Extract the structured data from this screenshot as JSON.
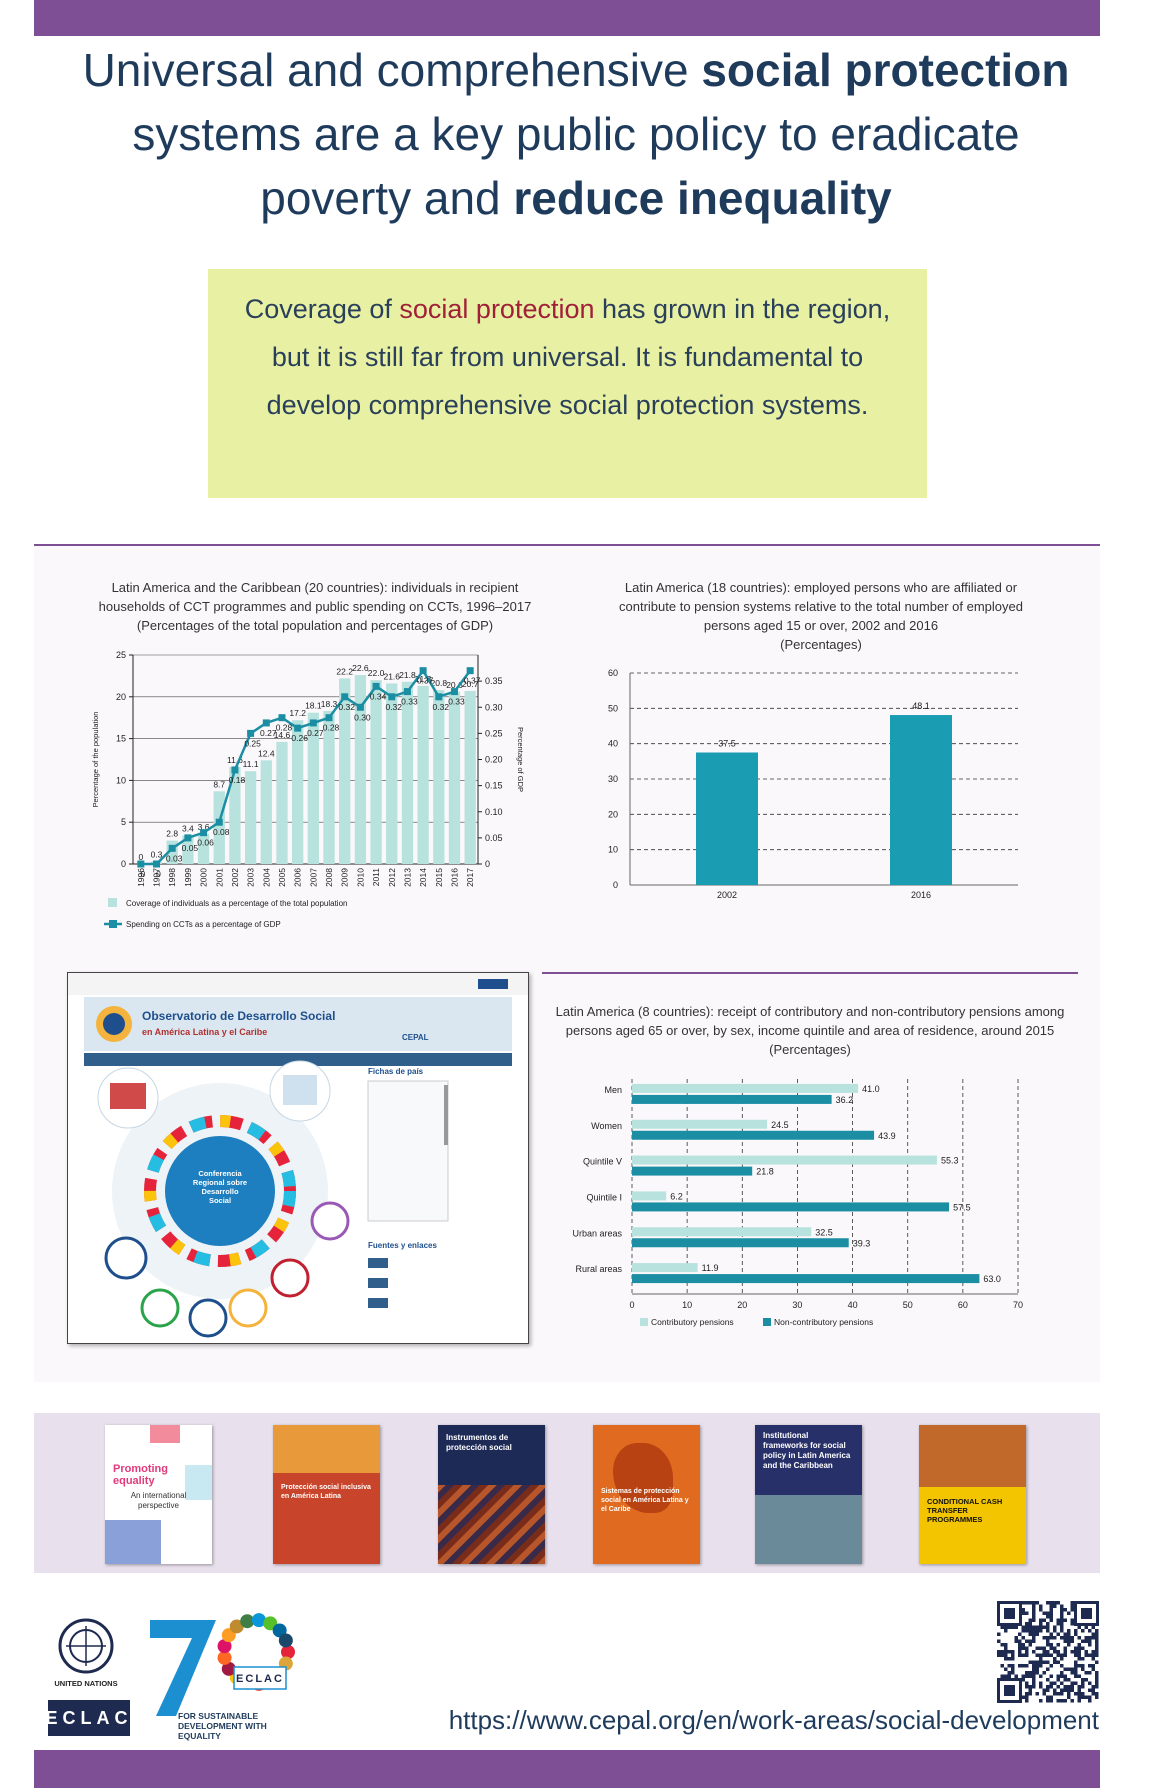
{
  "title": [
    "Universal and comprehensive",
    "social protection",
    "systems are a key public policy to eradicate",
    "poverty and",
    "reduce inequality"
  ],
  "callout": [
    "Coverage of",
    "social protection",
    "has grown in the region, but it is still far from universal. It is fundamental to develop comprehensive social protection systems."
  ],
  "chart_data": [
    {
      "type": "combo",
      "title": "Latin America and the Caribbean (20 countries): individuals in recipient households of CCT programmes and public spending on CCTs, 1996–2017",
      "subtitle": "(Percentages of the total population and percentages of GDP)",
      "y_label": "Percentage of the population",
      "y2_label": "Percentage of GDP",
      "categories": [
        "1996",
        "1997",
        "1998",
        "1999",
        "2000",
        "2001",
        "2002",
        "2003",
        "2004",
        "2005",
        "2006",
        "2007",
        "2008",
        "2009",
        "2010",
        "2011",
        "2012",
        "2013",
        "2014",
        "2015",
        "2016",
        "2017"
      ],
      "series": [
        {
          "name": "Coverage of individuals as a percentage of the total population",
          "type": "bar",
          "color": "#b8e2de",
          "values": [
            0,
            0.3,
            2.8,
            3.4,
            3.6,
            8.7,
            11.6,
            11.1,
            12.4,
            14.6,
            17.2,
            18.1,
            18.3,
            22.2,
            22.6,
            22.0,
            21.6,
            21.8,
            21.3,
            20.8,
            20.6,
            20.7
          ],
          "value_labels": [
            "0",
            "0.3",
            "2.8",
            "3.4",
            "3.6",
            "8.7",
            "11.6",
            "11.1",
            "12.4",
            "14.6",
            "17.2",
            "18.1",
            "18.3",
            "22.2",
            "22.6",
            "22.0",
            "21.6",
            "21.8",
            "21.3",
            "20.8",
            "20.6",
            "20.7"
          ]
        },
        {
          "name": "Spending on CCTs as a percentage of GDP",
          "type": "line",
          "axis": "y2",
          "color": "#1b8ea3",
          "values": [
            0,
            0,
            0.03,
            0.05,
            0.06,
            0.08,
            0.18,
            0.25,
            0.27,
            0.28,
            0.26,
            0.27,
            0.28,
            0.32,
            0.3,
            0.34,
            0.32,
            0.33,
            0.37,
            0.32,
            0.33,
            0.37
          ],
          "value_labels": [
            "0",
            "0",
            "0.03",
            "0.05",
            "0.06",
            "0.08",
            "0.18",
            "0.25",
            "0.27",
            "0.28",
            "0.26",
            "0.27",
            "0.28",
            "0.32",
            "0.30",
            "0.34",
            "0.32",
            "0.33",
            "0.37",
            "0.32",
            "0.33",
            "0.37"
          ]
        }
      ],
      "ylim": [
        0,
        25
      ],
      "yticks": [
        0,
        5,
        10,
        15,
        20,
        25
      ],
      "y2lim": [
        0,
        0.4
      ],
      "y2ticks": [
        0,
        0.05,
        {
          "value": 0.1,
          "label": "0.10"
        },
        0.15,
        {
          "value": 0.2,
          "label": "0.20"
        },
        0.25,
        {
          "value": 0.3,
          "label": "0.30"
        },
        0.35
      ],
      "grid": true
    },
    {
      "type": "bar",
      "title": "Latin America (18 countries): employed persons who are affiliated or contribute to pension systems relative to the total number of employed persons aged 15 or over, 2002 and 2016",
      "subtitle": "(Percentages)",
      "categories": [
        "2002",
        "2016"
      ],
      "values": [
        37.5,
        48.1
      ],
      "color": "#1a9cb3",
      "ylim": [
        0,
        60
      ],
      "yticks": [
        0,
        10,
        20,
        30,
        40,
        50,
        60
      ],
      "grid": true
    },
    {
      "type": "hbar",
      "title": "Latin America (8 countries): receipt of contributory and non-contributory pensions among persons aged 65 or over, by sex, income quintile and area of residence, around 2015",
      "subtitle": "(Percentages)",
      "categories": [
        "Men",
        "Women",
        "Quintile V",
        "Quintile I",
        "Urban areas",
        "Rural areas"
      ],
      "series": [
        {
          "name": "Contributory pensions",
          "color": "#b8e2de",
          "values": [
            41.0,
            24.5,
            55.3,
            6.2,
            32.5,
            11.9
          ],
          "value_labels": [
            "41.0",
            "24.5",
            "55.3",
            "6.2",
            "32.5",
            "11.9"
          ]
        },
        {
          "name": "Non-contributory pensions",
          "color": "#1b8ea3",
          "values": [
            36.2,
            43.9,
            21.8,
            57.5,
            39.3,
            63.0
          ],
          "value_labels": [
            "36.2",
            "43.9",
            "21.8",
            "57.5",
            "39.3",
            "63.0"
          ]
        }
      ],
      "xlim": [
        0,
        70
      ],
      "xticks": [
        0,
        10,
        20,
        30,
        40,
        50,
        60,
        70
      ],
      "grid": true
    }
  ],
  "observatory": {
    "title": "Observatorio de Desarrollo Social",
    "subtitle": "en América Latina y el Caribe",
    "cepal": "CEPAL",
    "conference": "Conferencia Regional sobre Desarrollo Social",
    "country_profiles": "Fichas de país",
    "sources": "Fuentes y enlaces"
  },
  "publications": [
    {
      "title": "Promoting equality",
      "subtitle": "An international perspective"
    },
    {
      "title": "Protección social inclusiva en América Latina"
    },
    {
      "title": "Instrumentos de protección social"
    },
    {
      "title": "Sistemas de protección social en América Latina y el Caribe"
    },
    {
      "title": "Institutional frameworks for social policy in Latin America and the Caribbean"
    },
    {
      "title": "CONDITIONAL CASH TRANSFER PROGRAMMES"
    }
  ],
  "footer": {
    "un": "UNITED NATIONS",
    "eclac": "ECLAC",
    "eclac_badge": "ECLAC",
    "tagline": "FOR SUSTAINABLE DEVELOPMENT WITH EQUALITY",
    "url": "https://www.cepal.org/en/work-areas/social-development"
  }
}
